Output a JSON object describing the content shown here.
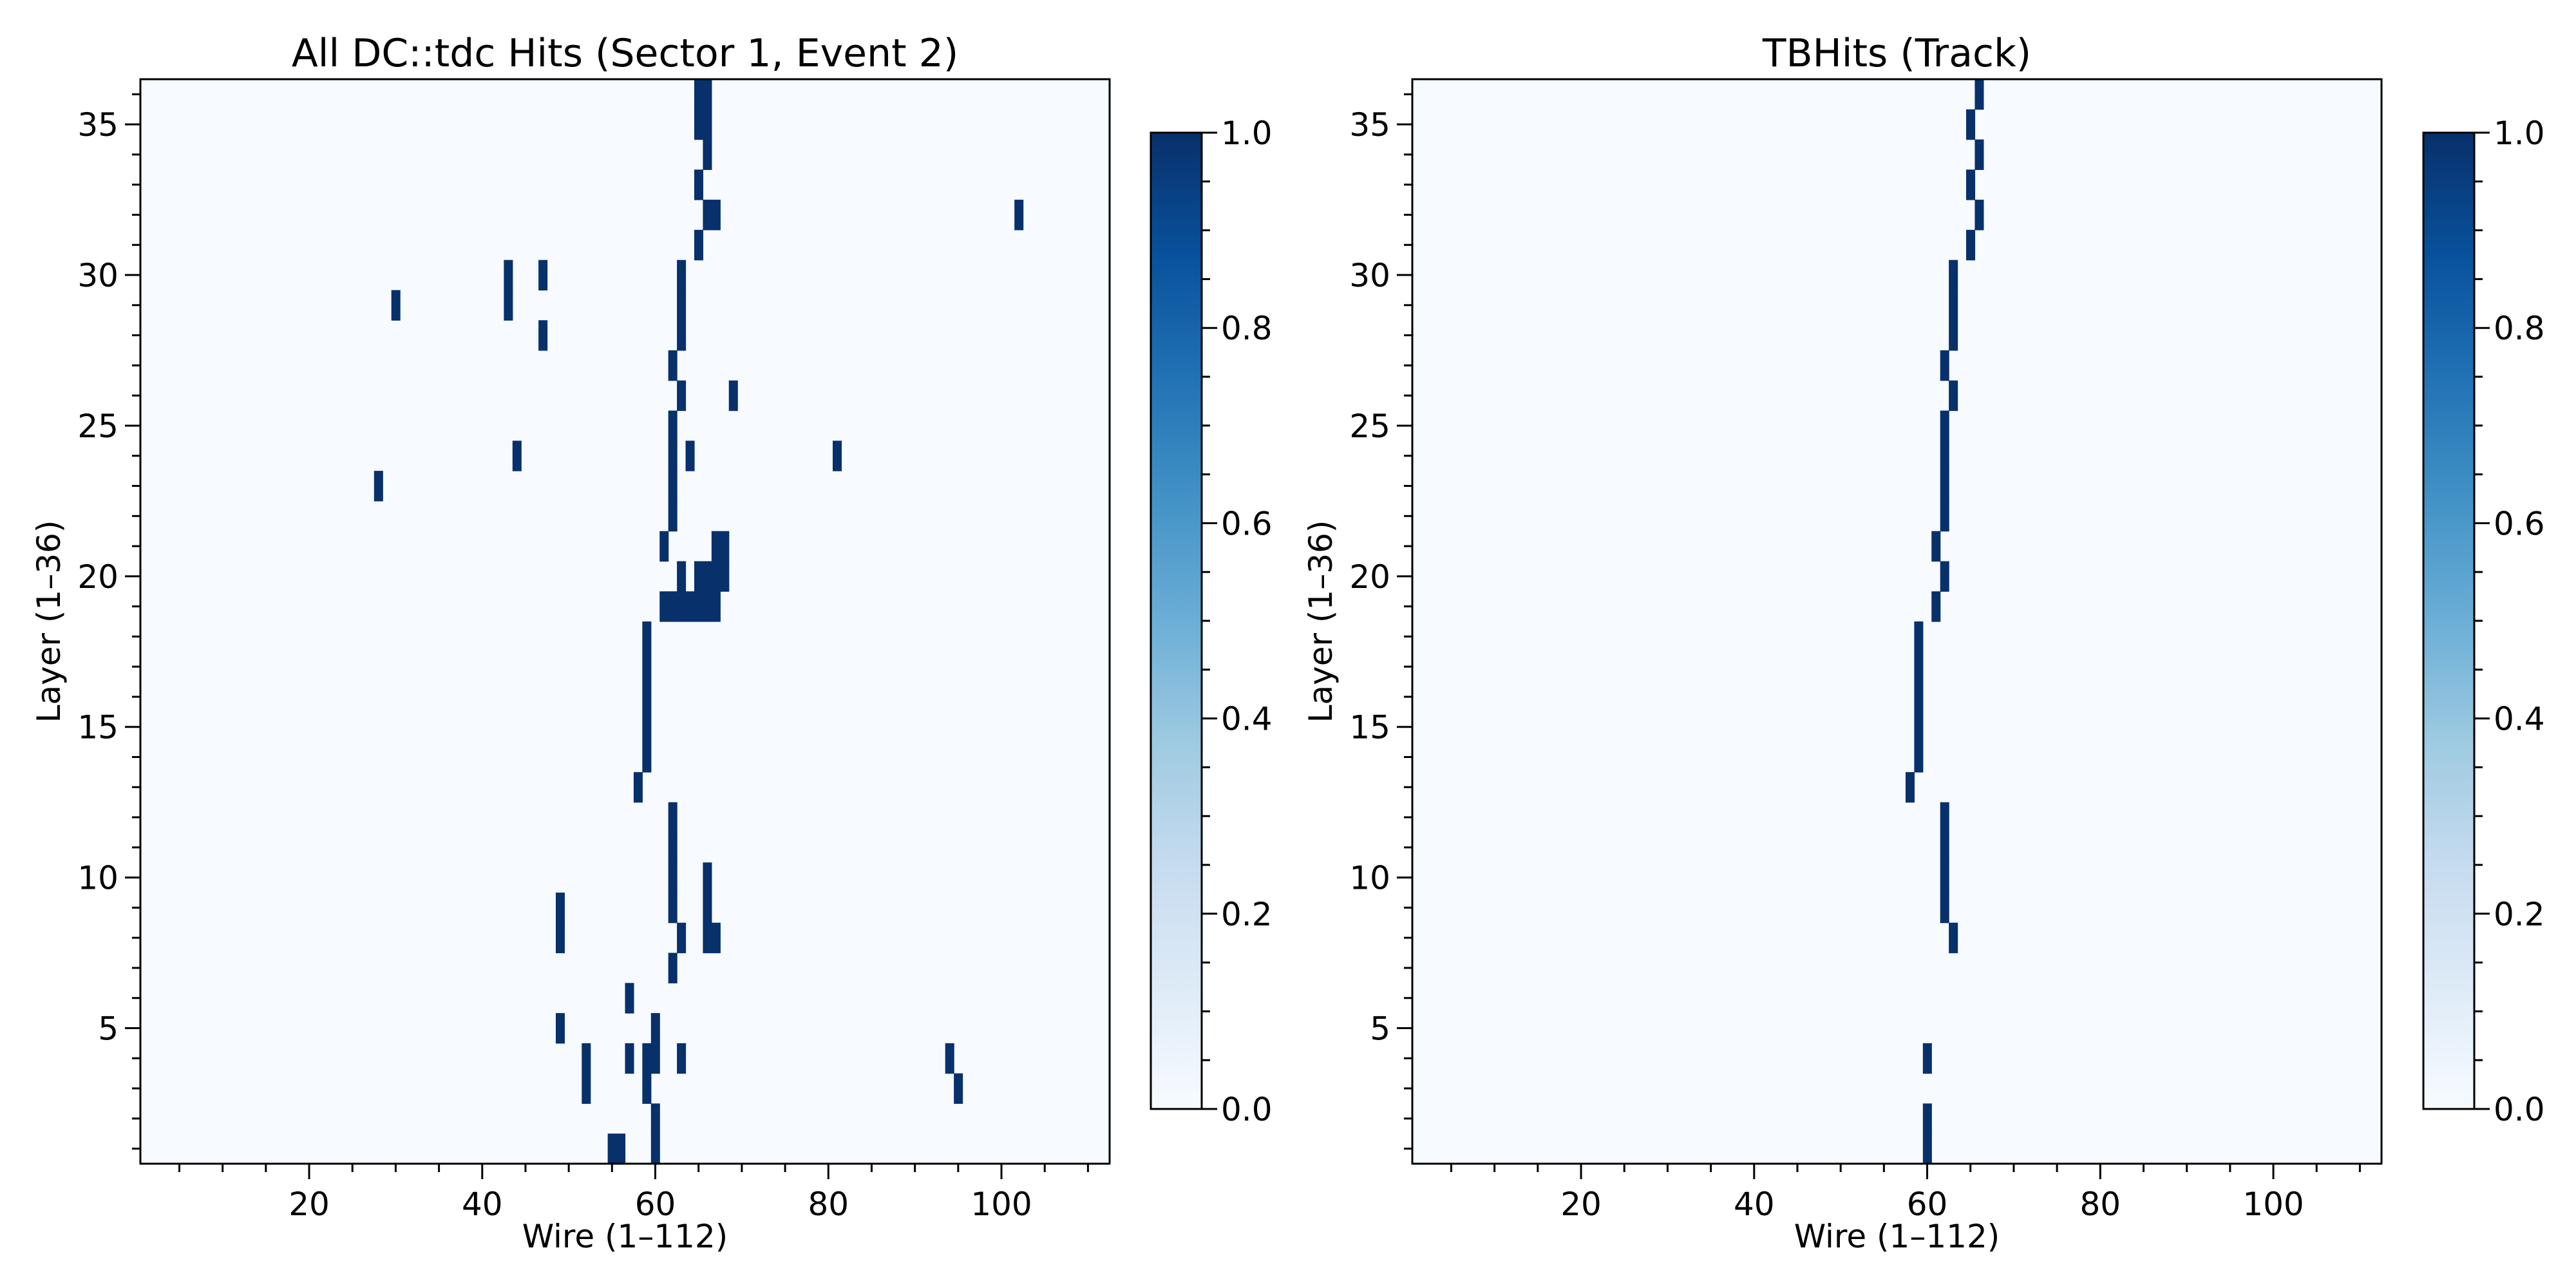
{
  "chart_data": [
    {
      "type": "heatmap",
      "title": "All DC::tdc Hits (Sector 1, Event 2)",
      "xlabel": "Wire (1–112)",
      "ylabel": "Layer (1–36)",
      "xlim": [
        0.5,
        112.5
      ],
      "ylim": [
        0.5,
        36.5
      ],
      "x_major_ticks": [
        20,
        40,
        60,
        80,
        100
      ],
      "y_major_ticks": [
        5,
        10,
        15,
        20,
        25,
        30,
        35
      ],
      "colormap": "Blues",
      "color_low": "#f7fbff",
      "color_high": "#08306b",
      "colorbar": {
        "min": 0.0,
        "max": 1.0,
        "ticks": [
          "0.0",
          "0.2",
          "0.4",
          "0.6",
          "0.8",
          "1.0"
        ]
      },
      "hits": [
        [
          55,
          1
        ],
        [
          56,
          1
        ],
        [
          60,
          1
        ],
        [
          60,
          2
        ],
        [
          52,
          3
        ],
        [
          59,
          3
        ],
        [
          95,
          3
        ],
        [
          52,
          4
        ],
        [
          57,
          4
        ],
        [
          59,
          4
        ],
        [
          60,
          4
        ],
        [
          63,
          4
        ],
        [
          94,
          4
        ],
        [
          49,
          5
        ],
        [
          60,
          5
        ],
        [
          57,
          6
        ],
        [
          62,
          7
        ],
        [
          49,
          8
        ],
        [
          63,
          8
        ],
        [
          66,
          8
        ],
        [
          67,
          8
        ],
        [
          49,
          9
        ],
        [
          62,
          9
        ],
        [
          66,
          9
        ],
        [
          62,
          10
        ],
        [
          66,
          10
        ],
        [
          62,
          11
        ],
        [
          62,
          12
        ],
        [
          58,
          13
        ],
        [
          59,
          14
        ],
        [
          59,
          15
        ],
        [
          59,
          16
        ],
        [
          59,
          17
        ],
        [
          59,
          18
        ],
        [
          61,
          19
        ],
        [
          62,
          19
        ],
        [
          63,
          19
        ],
        [
          64,
          19
        ],
        [
          65,
          19
        ],
        [
          66,
          19
        ],
        [
          67,
          19
        ],
        [
          63,
          20
        ],
        [
          65,
          20
        ],
        [
          66,
          20
        ],
        [
          67,
          20
        ],
        [
          68,
          20
        ],
        [
          61,
          21
        ],
        [
          67,
          21
        ],
        [
          68,
          21
        ],
        [
          62,
          22
        ],
        [
          28,
          23
        ],
        [
          62,
          23
        ],
        [
          44,
          24
        ],
        [
          62,
          24
        ],
        [
          64,
          24
        ],
        [
          81,
          24
        ],
        [
          62,
          25
        ],
        [
          63,
          26
        ],
        [
          69,
          26
        ],
        [
          62,
          27
        ],
        [
          47,
          28
        ],
        [
          63,
          28
        ],
        [
          30,
          29
        ],
        [
          43,
          29
        ],
        [
          63,
          29
        ],
        [
          43,
          30
        ],
        [
          47,
          30
        ],
        [
          63,
          30
        ],
        [
          65,
          31
        ],
        [
          66,
          32
        ],
        [
          67,
          32
        ],
        [
          102,
          32
        ],
        [
          65,
          33
        ],
        [
          66,
          34
        ],
        [
          65,
          35
        ],
        [
          66,
          35
        ],
        [
          65,
          36
        ],
        [
          66,
          36
        ]
      ]
    },
    {
      "type": "heatmap",
      "title": "TBHits (Track)",
      "xlabel": "Wire (1–112)",
      "ylabel": "Layer (1–36)",
      "xlim": [
        0.5,
        112.5
      ],
      "ylim": [
        0.5,
        36.5
      ],
      "x_major_ticks": [
        20,
        40,
        60,
        80,
        100
      ],
      "y_major_ticks": [
        5,
        10,
        15,
        20,
        25,
        30,
        35
      ],
      "colormap": "Blues",
      "color_low": "#f7fbff",
      "color_high": "#08306b",
      "colorbar": {
        "min": 0.0,
        "max": 1.0,
        "ticks": [
          "0.0",
          "0.2",
          "0.4",
          "0.6",
          "0.8",
          "1.0"
        ]
      },
      "hits": [
        [
          60,
          1
        ],
        [
          60,
          2
        ],
        [
          60,
          4
        ],
        [
          63,
          8
        ],
        [
          62,
          9
        ],
        [
          62,
          10
        ],
        [
          62,
          11
        ],
        [
          62,
          12
        ],
        [
          58,
          13
        ],
        [
          59,
          14
        ],
        [
          59,
          15
        ],
        [
          59,
          16
        ],
        [
          59,
          17
        ],
        [
          59,
          18
        ],
        [
          61,
          19
        ],
        [
          62,
          20
        ],
        [
          61,
          21
        ],
        [
          62,
          22
        ],
        [
          62,
          23
        ],
        [
          62,
          24
        ],
        [
          62,
          25
        ],
        [
          63,
          26
        ],
        [
          62,
          27
        ],
        [
          63,
          28
        ],
        [
          63,
          29
        ],
        [
          63,
          30
        ],
        [
          65,
          31
        ],
        [
          66,
          32
        ],
        [
          65,
          33
        ],
        [
          66,
          34
        ],
        [
          65,
          35
        ],
        [
          66,
          36
        ]
      ]
    }
  ]
}
